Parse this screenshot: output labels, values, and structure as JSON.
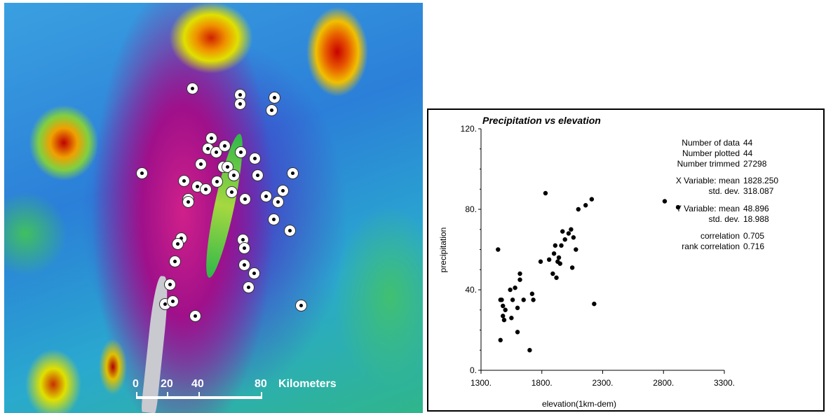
{
  "map": {
    "scale_labels": [
      "0",
      "20",
      "40",
      "80"
    ],
    "scale_unit": "Kilometers",
    "stations": [
      [
        268,
        122
      ],
      [
        336,
        131
      ],
      [
        336,
        144
      ],
      [
        385,
        135
      ],
      [
        381,
        153
      ],
      [
        295,
        193
      ],
      [
        290,
        208
      ],
      [
        302,
        213
      ],
      [
        314,
        204
      ],
      [
        337,
        213
      ],
      [
        357,
        222
      ],
      [
        280,
        230
      ],
      [
        312,
        234
      ],
      [
        318,
        234
      ],
      [
        327,
        246
      ],
      [
        361,
        246
      ],
      [
        411,
        243
      ],
      [
        196,
        243
      ],
      [
        256,
        254
      ],
      [
        275,
        262
      ],
      [
        287,
        266
      ],
      [
        303,
        255
      ],
      [
        324,
        270
      ],
      [
        343,
        280
      ],
      [
        373,
        276
      ],
      [
        397,
        268
      ],
      [
        390,
        284
      ],
      [
        262,
        280
      ],
      [
        262,
        284
      ],
      [
        384,
        309
      ],
      [
        407,
        325
      ],
      [
        252,
        336
      ],
      [
        340,
        338
      ],
      [
        247,
        344
      ],
      [
        342,
        350
      ],
      [
        243,
        369
      ],
      [
        342,
        374
      ],
      [
        356,
        386
      ],
      [
        348,
        406
      ],
      [
        236,
        402
      ],
      [
        229,
        430
      ],
      [
        240,
        426
      ],
      [
        272,
        447
      ],
      [
        423,
        432
      ]
    ]
  },
  "chart_data": {
    "type": "scatter",
    "title": "Precipitation vs elevation",
    "xlabel": "elevation(1km-dem)",
    "ylabel": "precipitation",
    "xlim": [
      1300,
      3300
    ],
    "ylim": [
      0,
      120
    ],
    "x_ticks": [
      "1300.",
      "1800.",
      "2300.",
      "2800.",
      "3300."
    ],
    "y_ticks": [
      "0.",
      "40.",
      "80.",
      "120."
    ],
    "x": [
      1440,
      1460,
      1470,
      1480,
      1490,
      1500,
      1460,
      1540,
      1560,
      1580,
      1600,
      1620,
      1620,
      1650,
      1720,
      1730,
      1790,
      1830,
      1860,
      1890,
      1900,
      1910,
      1920,
      1930,
      1940,
      1950,
      1960,
      1970,
      1990,
      2020,
      2040,
      2060,
      2080,
      2100,
      2160,
      2210,
      2230,
      2810,
      2920,
      2050,
      1550,
      1600,
      1480,
      1700
    ],
    "y": [
      60,
      35,
      35,
      32,
      25,
      30,
      15,
      40,
      35,
      41,
      31,
      45,
      48,
      35,
      38,
      35,
      54,
      88,
      55,
      48,
      58,
      62,
      46,
      54,
      56,
      53,
      62,
      69,
      65,
      68,
      70,
      66,
      60,
      80,
      82,
      85,
      33,
      84,
      81,
      51,
      26,
      19,
      27,
      10
    ]
  },
  "stats": [
    {
      "label": "Number of data",
      "value": "44"
    },
    {
      "label": "Number plotted",
      "value": "44"
    },
    {
      "label": "Number trimmed",
      "value": "27298"
    },
    {
      "label": "X Variable: mean",
      "value": "1828.250"
    },
    {
      "label": "std. dev.",
      "value": "318.087"
    },
    {
      "label": "Y Variable: mean",
      "value": "48.896"
    },
    {
      "label": "std. dev.",
      "value": "18.988"
    },
    {
      "label": "correlation",
      "value": "0.705"
    },
    {
      "label": "rank correlation",
      "value": "0.716"
    }
  ]
}
